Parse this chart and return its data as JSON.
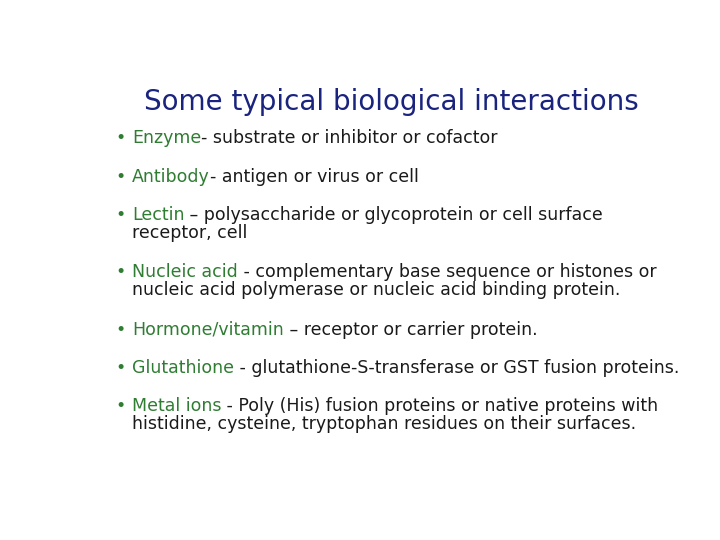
{
  "title": "Some typical biological interactions",
  "title_color": "#1a237e",
  "title_fontsize": 20,
  "background_color": "#ffffff",
  "bullet_color": "#2e7d32",
  "bullet_char": "•",
  "items": [
    {
      "keyword": "Enzyme",
      "keyword_color": "#2e7d32",
      "rest": "- substrate or inhibitor or cofactor",
      "rest_color": "#1a1a1a",
      "lines": 1
    },
    {
      "keyword": "Antibody",
      "keyword_color": "#2e7d32",
      "rest": "- antigen or virus or cell",
      "rest_color": "#1a1a1a",
      "lines": 1
    },
    {
      "keyword": "Lectin",
      "keyword_color": "#2e7d32",
      "rest": " – polysaccharide or glycoprotein or cell surface\nreceptor, cell",
      "rest_color": "#1a1a1a",
      "lines": 2
    },
    {
      "keyword": "Nucleic acid",
      "keyword_color": "#2e7d32",
      "rest": " - complementary base sequence or histones or\nnucleic acid polymerase or nucleic acid binding protein.",
      "rest_color": "#1a1a1a",
      "lines": 2
    },
    {
      "keyword": "Hormone/vitamin",
      "keyword_color": "#2e7d32",
      "rest": " – receptor or carrier protein.",
      "rest_color": "#1a1a1a",
      "lines": 1
    },
    {
      "keyword": "Glutathione",
      "keyword_color": "#2e7d32",
      "rest": " - glutathione-S-transferase or GST fusion proteins.",
      "rest_color": "#1a1a1a",
      "lines": 1
    },
    {
      "keyword": "Metal ions",
      "keyword_color": "#2e7d32",
      "rest": " - Poly (His) fusion proteins or native proteins with\nhistidine, cysteine, tryptophan residues on their surfaces.",
      "rest_color": "#1a1a1a",
      "lines": 2
    }
  ],
  "body_fontsize": 12.5,
  "font_family": "DejaVu Sans",
  "fig_width": 7.2,
  "fig_height": 5.4,
  "dpi": 100
}
